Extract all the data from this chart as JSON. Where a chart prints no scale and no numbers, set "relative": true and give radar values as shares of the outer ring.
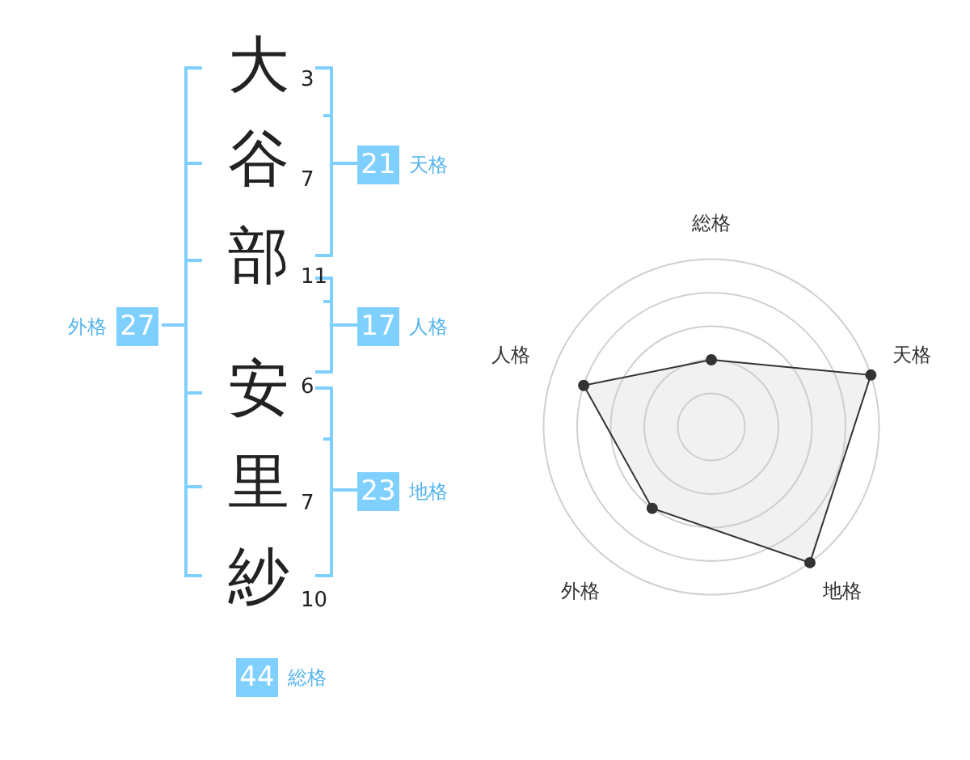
{
  "chart_data": [
    {
      "type": "other",
      "categories": [
        "大",
        "谷",
        "部",
        "安",
        "里",
        "紗"
      ],
      "values": [
        3,
        7,
        11,
        6,
        7,
        10
      ],
      "data_labels": true,
      "annotations": [
        "21",
        "天格",
        "17",
        "人格",
        "23",
        "地格",
        "27",
        "外格",
        "44",
        "総格"
      ]
    },
    {
      "type": "radar",
      "relative": true,
      "categories": [
        "総格",
        "天格",
        "地格",
        "外格",
        "人格"
      ],
      "series": [
        {
          "color": "#333333",
          "values": [
            0.4,
            1,
            1,
            0.6,
            0.8
          ]
        }
      ],
      "marker": "circle",
      "grid": true,
      "legend": false
    }
  ]
}
